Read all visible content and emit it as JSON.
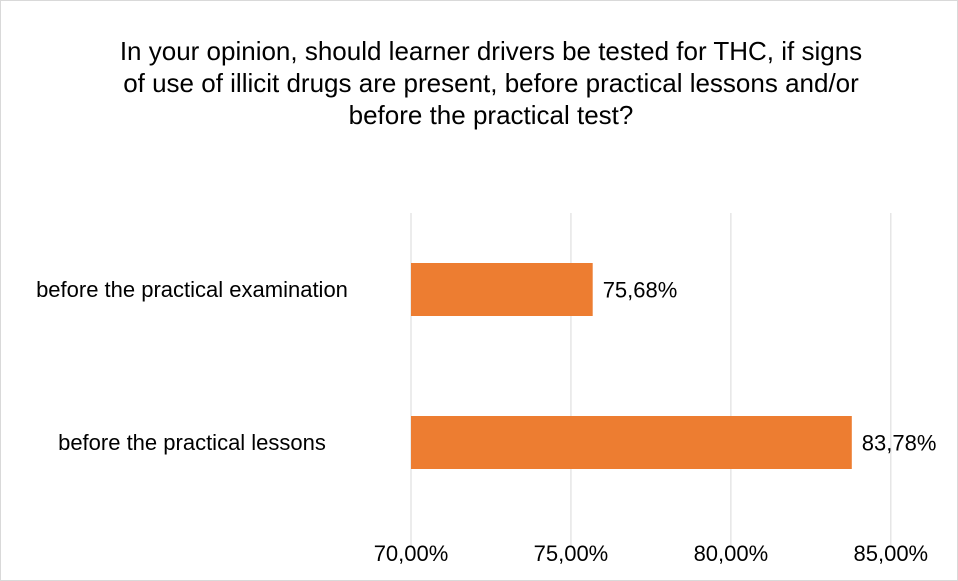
{
  "chart_data": {
    "type": "bar",
    "orientation": "horizontal",
    "title": "In your opinion, should learner drivers be tested for THC, if signs of use of illicit drugs are present, before practical lessons and/or before the practical test?",
    "categories": [
      "before the practical lessons",
      "before the practical examination"
    ],
    "values": [
      83.78,
      75.68
    ],
    "value_labels": [
      "83,78%",
      "75,68%"
    ],
    "color": "#ed7d31",
    "xlim": [
      70,
      87.1
    ],
    "xticks": [
      {
        "value": 70,
        "label": "70,00%"
      },
      {
        "value": 75,
        "label": "75,00%"
      },
      {
        "value": 80,
        "label": "80,00%"
      },
      {
        "value": 85,
        "label": "85,00%"
      }
    ],
    "grid": true
  }
}
